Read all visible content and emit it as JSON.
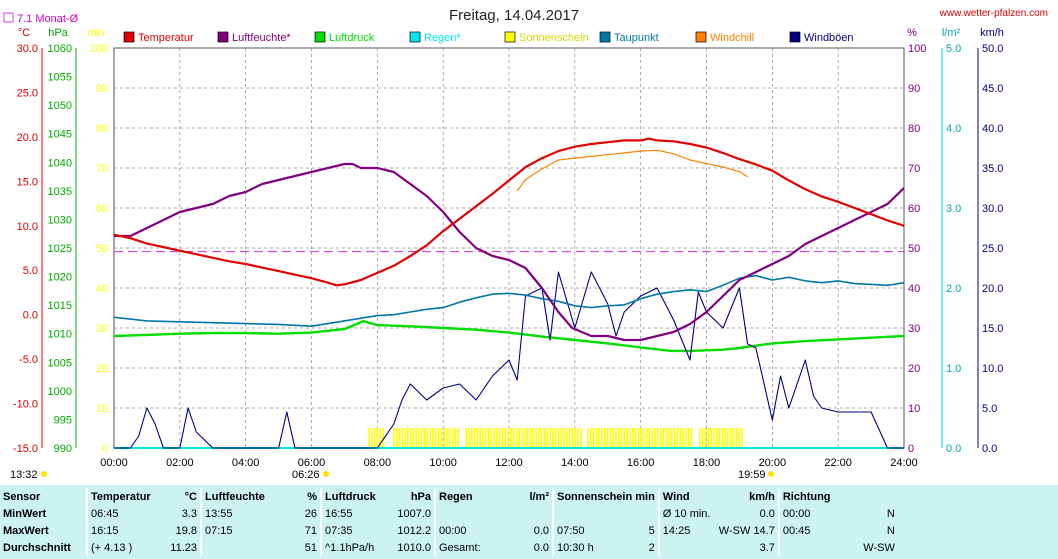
{
  "title": "Freitag, 14.04.2017",
  "site": "www.wetter-pfalzen.com",
  "monthly_avg_label": "7.1 Monat-Ø",
  "start_time": "13:32",
  "end_time": "19:59",
  "marker_time": "06:26",
  "legend": [
    {
      "label": "Temperatur",
      "color": "#e00000"
    },
    {
      "label": "Luftfeuchte*",
      "color": "#800080"
    },
    {
      "label": "Luftdruck",
      "color": "#00dd00"
    },
    {
      "label": "Regen*",
      "color": "#00e5ee"
    },
    {
      "label": "Sonnenschein",
      "color": "#ffff00"
    },
    {
      "label": "Taupunkt",
      "color": "#0077aa"
    },
    {
      "label": "Windchill",
      "color": "#ff8000"
    },
    {
      "label": "Windböen",
      "color": "#000080"
    }
  ],
  "axes": {
    "temp": {
      "unit": "°C",
      "ticks": [
        "30.0",
        "25.0",
        "20.0",
        "15.0",
        "10.0",
        "5.0",
        "0.0",
        "-5.0",
        "-10.0",
        "-15.0"
      ],
      "color": "#e00000"
    },
    "press": {
      "unit": "hPa",
      "ticks": [
        "1060",
        "1055",
        "1050",
        "1045",
        "1040",
        "1035",
        "1030",
        "1025",
        "1020",
        "1015",
        "1010",
        "1005",
        "1000",
        "995",
        "990"
      ],
      "color": "#00aa00"
    },
    "sun": {
      "unit": "min",
      "ticks": [
        "100",
        "90",
        "80",
        "70",
        "60",
        "50",
        "40",
        "30",
        "20",
        "10",
        "0"
      ],
      "color": "#ffff00"
    },
    "hum": {
      "unit": "%",
      "ticks": [
        "100",
        "90",
        "80",
        "70",
        "60",
        "50",
        "40",
        "30",
        "20",
        "10",
        "0"
      ],
      "color": "#800080"
    },
    "rain": {
      "unit": "l/m²",
      "ticks": [
        "5.0",
        "4.0",
        "3.0",
        "2.0",
        "1.0",
        "0.0"
      ],
      "color": "#00e5ee"
    },
    "wind": {
      "unit": "km/h",
      "ticks": [
        "50.0",
        "45.0",
        "40.0",
        "35.0",
        "30.0",
        "25.0",
        "20.0",
        "15.0",
        "10.0",
        "5.0",
        "0.0"
      ],
      "color": "#000080"
    },
    "x": {
      "ticks": [
        "00:00",
        "02:00",
        "04:00",
        "06:00",
        "08:00",
        "10:00",
        "12:00",
        "14:00",
        "16:00",
        "18:00",
        "20:00",
        "22:00",
        "24:00"
      ]
    }
  },
  "stats": {
    "row_labels": [
      "Sensor",
      "MinWert",
      "MaxWert",
      "Durchschnitt"
    ],
    "temperatur": {
      "head": "Temperatur",
      "unit": "°C",
      "min_time": "06:45",
      "min": "3.3",
      "max_time": "16:15",
      "max": "19.8",
      "avg_extra": "(+ 4.13 )",
      "avg": "11.23"
    },
    "luftfeuchte": {
      "head": "Luftfeuchte",
      "unit": "%",
      "min_time": "13:55",
      "min": "26",
      "max_time": "07:15",
      "max": "71",
      "avg": "51"
    },
    "luftdruck": {
      "head": "Luftdruck",
      "unit": "hPa",
      "min_time": "16:55",
      "min": "1007.0",
      "max_time": "07:35",
      "max": "1012.2",
      "avg_extra": "^1.1hPa/h",
      "avg": "1010.0"
    },
    "regen": {
      "head": "Regen",
      "unit": "l/m²",
      "max_time": "00:00",
      "max": "0.0",
      "avg_extra": "Gesamt:",
      "avg": "0.0"
    },
    "sonne": {
      "head": "Sonnenschein min",
      "max_time": "07:50",
      "max": "5",
      "avg_extra": "10:30 h",
      "avg": "2"
    },
    "wind": {
      "head": "Wind",
      "unit": "km/h",
      "min_time": "Ø 10 min.",
      "min": "0.0",
      "max_time": "14:25",
      "max_dir": "W-SW",
      "max": "14.7",
      "avg": "3.7"
    },
    "richtung": {
      "head": "Richtung",
      "min_time": "00:00",
      "min": "N",
      "max_time": "00:45",
      "max": "N",
      "avg": "W-SW"
    }
  },
  "chart_data": {
    "type": "line",
    "title": "Freitag, 14.04.2017",
    "x_unit": "hour of day",
    "xlim": [
      0,
      24
    ],
    "monthly_avg_temp": 7.1,
    "series": [
      {
        "name": "Temperatur",
        "unit": "°C",
        "color": "#e00000",
        "x": [
          0,
          0.5,
          1,
          1.5,
          2,
          2.5,
          3,
          3.5,
          4,
          4.5,
          5,
          5.5,
          6,
          6.5,
          6.75,
          7,
          7.5,
          8,
          8.5,
          9,
          9.5,
          10,
          10.5,
          11,
          11.5,
          12,
          12.5,
          13,
          13.5,
          14,
          14.5,
          15,
          15.5,
          16,
          16.25,
          16.5,
          17,
          17.5,
          18,
          18.5,
          19,
          19.5,
          20,
          20.5,
          21,
          21.5,
          22,
          22.5,
          23,
          23.5,
          24
        ],
        "y": [
          9.0,
          8.6,
          8.0,
          7.6,
          7.2,
          6.8,
          6.4,
          6.0,
          5.7,
          5.3,
          4.9,
          4.5,
          4.1,
          3.6,
          3.3,
          3.4,
          3.9,
          4.7,
          5.5,
          6.6,
          7.8,
          9.4,
          10.8,
          12.2,
          13.6,
          15.1,
          16.6,
          17.6,
          18.4,
          18.9,
          19.2,
          19.4,
          19.6,
          19.6,
          19.8,
          19.6,
          19.5,
          19.2,
          18.8,
          18.2,
          17.5,
          16.9,
          16.2,
          15.1,
          14.1,
          13.3,
          12.7,
          12.0,
          11.3,
          10.6,
          10.0
        ]
      },
      {
        "name": "Luftfeuchte*",
        "unit": "%",
        "color": "#800080",
        "x": [
          0,
          0.5,
          1,
          1.5,
          2,
          2.5,
          3,
          3.5,
          4,
          4.5,
          5,
          5.5,
          6,
          6.5,
          7,
          7.25,
          7.5,
          8,
          8.5,
          9,
          9.5,
          10,
          10.5,
          11,
          11.5,
          12,
          12.5,
          13,
          13.5,
          13.92,
          14.5,
          15,
          15.5,
          16,
          16.5,
          17,
          17.5,
          18,
          18.5,
          19,
          19.5,
          20,
          20.5,
          21,
          21.5,
          22,
          22.5,
          23,
          23.5,
          24
        ],
        "y": [
          53,
          53,
          55,
          57,
          59,
          60,
          61,
          63,
          64,
          66,
          67,
          68,
          69,
          70,
          71,
          71,
          70,
          70,
          69,
          66,
          63,
          59,
          54,
          50,
          48,
          47,
          45,
          40,
          34,
          30,
          28,
          28,
          27,
          27,
          28,
          29,
          31,
          34,
          38,
          42,
          44,
          46,
          48,
          51,
          53,
          55,
          57,
          59,
          61,
          65
        ]
      },
      {
        "name": "Luftdruck",
        "unit": "hPa",
        "color": "#00dd00",
        "x": [
          0,
          1,
          2,
          3,
          4,
          5,
          6,
          7,
          7.58,
          8,
          9,
          10,
          11,
          12,
          13,
          14,
          15,
          16,
          16.92,
          17.5,
          18,
          18.5,
          19,
          19.5,
          20,
          21,
          22,
          23,
          24
        ],
        "y": [
          1009.6,
          1009.8,
          1010.0,
          1010.1,
          1010.1,
          1010.0,
          1010.2,
          1010.8,
          1012.2,
          1011.5,
          1011.3,
          1011.0,
          1010.7,
          1010.2,
          1009.5,
          1008.9,
          1008.3,
          1007.6,
          1007.0,
          1007.0,
          1007.1,
          1007.2,
          1007.5,
          1007.9,
          1008.3,
          1008.7,
          1009.0,
          1009.3,
          1009.6
        ]
      },
      {
        "name": "Regen*",
        "unit": "l/m²",
        "color": "#00e5ee",
        "x": [
          0,
          24
        ],
        "y": [
          0,
          0
        ]
      },
      {
        "name": "Taupunkt",
        "unit": "°C",
        "color": "#0077aa",
        "x": [
          0,
          1,
          2,
          3,
          4,
          5,
          6,
          7,
          8,
          8.5,
          9,
          9.5,
          10,
          10.5,
          11,
          11.5,
          12,
          12.5,
          13,
          13.5,
          14,
          14.5,
          15,
          15.5,
          16,
          16.5,
          17,
          17.5,
          18,
          18.5,
          19,
          19.5,
          20,
          20.5,
          21,
          21.5,
          22,
          22.5,
          23,
          23.5,
          24
        ],
        "y": [
          -0.3,
          -0.7,
          -0.8,
          -0.9,
          -1.0,
          -1.1,
          -1.3,
          -0.7,
          -0.1,
          0.0,
          0.3,
          0.6,
          0.8,
          1.4,
          1.9,
          2.3,
          2.4,
          2.2,
          1.8,
          1.5,
          1.0,
          0.8,
          1.0,
          1.1,
          1.8,
          2.3,
          2.6,
          2.8,
          2.6,
          3.3,
          4.1,
          4.4,
          3.9,
          4.2,
          3.8,
          3.6,
          3.8,
          3.5,
          3.4,
          3.3,
          3.6
        ]
      },
      {
        "name": "Windchill",
        "unit": "°C",
        "color": "#ff8000",
        "x": [
          12.25,
          12.5,
          13,
          13.5,
          14,
          14.5,
          15,
          15.5,
          16,
          16.5,
          17,
          17.5,
          18,
          18.5,
          19,
          19.25
        ],
        "y": [
          13.9,
          15.2,
          16.4,
          17.4,
          17.6,
          17.8,
          18.0,
          18.2,
          18.4,
          18.5,
          18.1,
          17.4,
          17.0,
          16.6,
          16.1,
          15.5
        ]
      },
      {
        "name": "Windböen",
        "unit": "km/h",
        "color": "#000080",
        "x": [
          0,
          0.5,
          0.75,
          1,
          1.25,
          1.5,
          2,
          2.25,
          2.5,
          3,
          4,
          5,
          5.25,
          5.5,
          6,
          7,
          8,
          8.5,
          8.75,
          9,
          9.5,
          10,
          10.5,
          11,
          11.5,
          12,
          12.25,
          12.5,
          13,
          13.25,
          13.5,
          14,
          14.5,
          15,
          15.25,
          15.5,
          16,
          16.5,
          17,
          17.5,
          17.75,
          18,
          18.5,
          19,
          19.25,
          19.5,
          20,
          20.25,
          20.5,
          21,
          21.25,
          21.5,
          22,
          22.5,
          23,
          23.5,
          24
        ],
        "y": [
          0,
          0,
          1.5,
          5.0,
          3.0,
          0,
          0,
          5.0,
          2.0,
          0,
          0,
          0,
          4.5,
          0,
          0,
          0,
          0,
          3.0,
          6.0,
          8.0,
          6.0,
          7.5,
          8.0,
          6.0,
          9.0,
          11.0,
          8.5,
          19.0,
          20.0,
          13.5,
          22.0,
          15.0,
          22.0,
          18.0,
          14.0,
          17.0,
          19.0,
          20.0,
          16.0,
          11.0,
          19.5,
          17.0,
          15.0,
          20.0,
          13.0,
          12.5,
          3.5,
          9.0,
          5.0,
          11.0,
          6.5,
          5.0,
          4.5,
          4.5,
          4.5,
          0,
          0
        ]
      },
      {
        "name": "Sonnenschein",
        "unit": "min",
        "color": "#ffff00",
        "intervals": [
          [
            7.75,
            8.2
          ],
          [
            8.5,
            10.5
          ],
          [
            10.7,
            14.2
          ],
          [
            14.4,
            17.6
          ],
          [
            17.8,
            19.1
          ]
        ],
        "value": 5
      }
    ]
  }
}
